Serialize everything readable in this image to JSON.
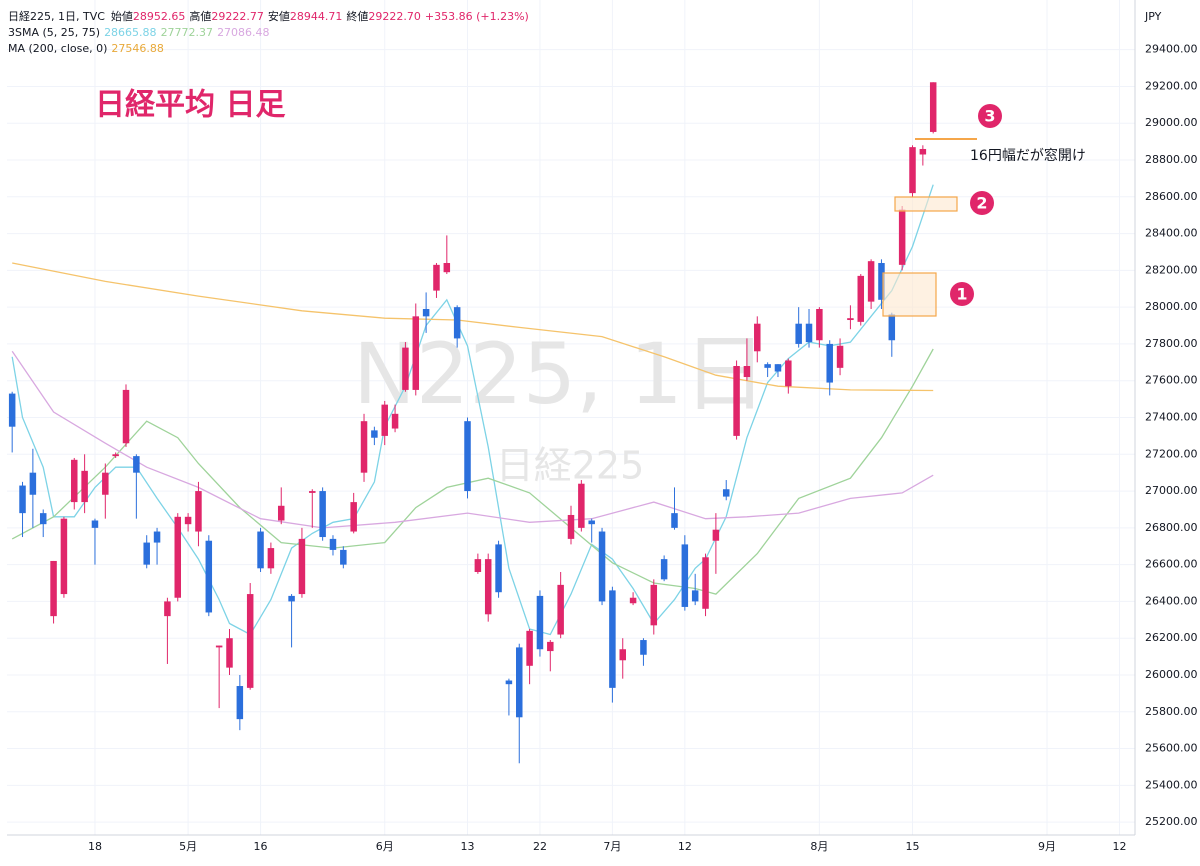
{
  "chart_data": {
    "type": "candlestick",
    "title": "日経平均 日足",
    "symbol": "日経225, 1日, TVC",
    "ohlc_labels": [
      "始値",
      "高値",
      "安値",
      "終値"
    ],
    "last_close_label": "29222.70",
    "change": "+353.86 (+1.23%)",
    "sma_label": "3SMA (5, 25, 75)",
    "ma_label": "MA (200, close, 0)",
    "watermark": "N225, 1日",
    "watermark_sub": "日経225",
    "axis_label": "JPY",
    "markers": [
      "1",
      "2",
      "3"
    ],
    "note": "16円幅だが窓開け",
    "up_color": "#e0266a",
    "down_color": "#2b6fdc",
    "grid": true,
    "xlim": [
      -0.5,
      108.5
    ],
    "xticks": [
      {
        "value": 8,
        "label": "18"
      },
      {
        "value": 17,
        "label": "5月"
      },
      {
        "value": 24,
        "label": "16"
      },
      {
        "value": 36,
        "label": "6月"
      },
      {
        "value": 44,
        "label": "13"
      },
      {
        "value": 51,
        "label": "22"
      },
      {
        "value": 58,
        "label": "7月"
      },
      {
        "value": 65,
        "label": "12"
      },
      {
        "value": 78,
        "label": "8月"
      },
      {
        "value": 87,
        "label": "15"
      },
      {
        "value": 100,
        "label": "9月"
      },
      {
        "value": 107,
        "label": "12"
      }
    ],
    "ylim": [
      25130,
      29670
    ],
    "yticks": [
      {
        "value": 25200,
        "label": "25200.00"
      },
      {
        "value": 25400,
        "label": "25400.00"
      },
      {
        "value": 25600,
        "label": "25600.00"
      },
      {
        "value": 25800,
        "label": "25800.00"
      },
      {
        "value": 26000,
        "label": "26000.00"
      },
      {
        "value": 26200,
        "label": "26200.00"
      },
      {
        "value": 26400,
        "label": "26400.00"
      },
      {
        "value": 26600,
        "label": "26600.00"
      },
      {
        "value": 26800,
        "label": "26800.00"
      },
      {
        "value": 27000,
        "label": "27000.00"
      },
      {
        "value": 27200,
        "label": "27200.00"
      },
      {
        "value": 27400,
        "label": "27400.00"
      },
      {
        "value": 27600,
        "label": "27600.00"
      },
      {
        "value": 27800,
        "label": "27800.00"
      },
      {
        "value": 28000,
        "label": "28000.00"
      },
      {
        "value": 28200,
        "label": "28200.00"
      },
      {
        "value": 28400,
        "label": "28400.00"
      },
      {
        "value": 28600,
        "label": "28600.00"
      },
      {
        "value": 28800,
        "label": "28800.00"
      },
      {
        "value": 29000,
        "label": "29000.00"
      },
      {
        "value": 29200,
        "label": "29200.00"
      },
      {
        "value": 29400,
        "label": "29400.00"
      }
    ],
    "open": [
      27530,
      27030,
      27100,
      26880,
      26320,
      26440,
      26940,
      26940,
      26840,
      26980,
      27190,
      27260,
      27190,
      26720,
      26780,
      26320,
      26420,
      26820,
      26780,
      26730,
      26150,
      26040,
      25940,
      25930,
      26780,
      26580,
      26840,
      26430,
      26440,
      26990,
      27000,
      26740,
      26680,
      26780,
      27100,
      27330,
      27300,
      27340,
      27550,
      27550,
      27990,
      28090,
      28190,
      28000,
      27380,
      26560,
      26330,
      26710,
      25970,
      26150,
      26050,
      26430,
      26130,
      26220,
      26740,
      26800,
      26840,
      26780,
      26460,
      26080,
      26390,
      26190,
      26270,
      26630,
      26880,
      26710,
      26460,
      26360,
      26730,
      27010,
      27300,
      27620,
      27760,
      27690,
      27690,
      27570,
      27910,
      27910,
      27820,
      27800,
      27670,
      27930,
      27920,
      28030,
      28240,
      27960,
      28230,
      28620,
      28830,
      28952.65
    ],
    "high": [
      27540,
      27050,
      27230,
      26900,
      26620,
      26860,
      27180,
      27200,
      26850,
      27150,
      27210,
      27580,
      27200,
      26760,
      26800,
      26420,
      26880,
      26880,
      27050,
      26760,
      26160,
      26250,
      26000,
      26500,
      26800,
      26720,
      27020,
      26440,
      26800,
      27010,
      27020,
      26760,
      26700,
      26990,
      27420,
      27350,
      27490,
      27470,
      27810,
      28020,
      28080,
      28240,
      28390,
      28010,
      27400,
      26660,
      26660,
      26730,
      25980,
      26170,
      26250,
      26460,
      26190,
      26560,
      26920,
      27060,
      26850,
      26800,
      26480,
      26200,
      26450,
      26200,
      26520,
      26650,
      27020,
      26760,
      26550,
      26660,
      26880,
      27060,
      27710,
      27830,
      27950,
      27700,
      27690,
      27720,
      28000,
      27990,
      28000,
      27820,
      27830,
      28010,
      28180,
      28260,
      28260,
      27970,
      28550,
      28880,
      28880,
      29222.77
    ],
    "low": [
      27210,
      26750,
      26800,
      26750,
      26280,
      26420,
      26900,
      26880,
      26600,
      26850,
      27180,
      27240,
      26850,
      26580,
      26600,
      26060,
      26400,
      26780,
      26700,
      26320,
      25820,
      26000,
      25700,
      25920,
      26560,
      26550,
      26820,
      26150,
      26420,
      26800,
      26730,
      26650,
      26580,
      26770,
      27050,
      27250,
      27250,
      27320,
      27540,
      27520,
      27860,
      28050,
      28180,
      27780,
      26960,
      26550,
      26290,
      26420,
      25780,
      25520,
      25950,
      26100,
      26020,
      26200,
      26710,
      26780,
      26720,
      26380,
      25850,
      25980,
      26380,
      26050,
      26220,
      26510,
      26790,
      26350,
      26380,
      26320,
      26550,
      26950,
      27280,
      27600,
      27700,
      27620,
      27620,
      27530,
      27780,
      27780,
      27780,
      27520,
      27630,
      27880,
      27900,
      27990,
      27990,
      27730,
      28200,
      28600,
      28770,
      28944.71
    ],
    "close": [
      27350,
      26880,
      26980,
      26820,
      26620,
      26850,
      27170,
      27110,
      26800,
      27100,
      27200,
      27550,
      27100,
      26600,
      26720,
      26400,
      26860,
      26860,
      27000,
      26340,
      26160,
      26200,
      25760,
      26440,
      26580,
      26690,
      26920,
      26400,
      26740,
      27000,
      26750,
      26680,
      26600,
      26940,
      27380,
      27290,
      27470,
      27420,
      27780,
      27950,
      27950,
      28230,
      28240,
      27830,
      27000,
      26630,
      26630,
      26450,
      25950,
      25770,
      26240,
      26140,
      26180,
      26490,
      26870,
      27040,
      26820,
      26400,
      25930,
      26140,
      26420,
      26110,
      26490,
      26520,
      26800,
      26370,
      26400,
      26640,
      26790,
      26970,
      27680,
      27680,
      27910,
      27670,
      27650,
      27710,
      27800,
      27810,
      27990,
      27590,
      27790,
      27940,
      28170,
      28250,
      28040,
      27820,
      28530,
      28870,
      28860,
      29222.7
    ],
    "lines": [
      {
        "color": "#7dd3e6",
        "x": [
          0,
          1,
          3,
          4,
          6,
          8,
          10,
          12,
          14,
          16,
          18,
          20,
          21,
          23,
          25,
          27,
          29,
          31,
          33,
          35,
          36,
          38,
          40,
          42,
          44,
          46,
          48,
          50,
          52,
          54,
          56,
          58,
          60,
          62,
          64,
          66,
          67,
          69,
          71,
          73,
          75,
          77,
          79,
          81,
          83,
          85,
          87,
          89
        ],
        "values": [
          27730,
          27400,
          27130,
          26860,
          26860,
          27020,
          27130,
          27130,
          26960,
          26800,
          26630,
          26410,
          26280,
          26220,
          26410,
          26690,
          26770,
          26830,
          26850,
          27050,
          27350,
          27570,
          27900,
          28040,
          27790,
          27240,
          26580,
          26250,
          26220,
          26440,
          26710,
          26630,
          26470,
          26280,
          26410,
          26580,
          26630,
          26860,
          27290,
          27590,
          27720,
          27810,
          27790,
          27810,
          27950,
          28090,
          28330,
          28665.88
        ]
      },
      {
        "color": "#9fd39a",
        "x": [
          0,
          4,
          9,
          13,
          16,
          18,
          22,
          26,
          31,
          36,
          39,
          42,
          46,
          50,
          54,
          58,
          62,
          66,
          68,
          72,
          76,
          81,
          84,
          87,
          89
        ],
        "values": [
          26740,
          26860,
          27130,
          27380,
          27290,
          27150,
          26910,
          26720,
          26690,
          26720,
          26910,
          27020,
          27070,
          26990,
          26800,
          26610,
          26500,
          26470,
          26440,
          26660,
          26960,
          27070,
          27290,
          27570,
          27772.37
        ]
      },
      {
        "color": "#d8a8e0",
        "x": [
          0,
          4,
          9,
          13,
          18,
          24,
          30,
          37,
          44,
          50,
          56,
          62,
          67,
          71,
          76,
          81,
          86,
          89
        ],
        "values": [
          27760,
          27430,
          27260,
          27130,
          27020,
          26850,
          26800,
          26830,
          26880,
          26830,
          26850,
          26940,
          26850,
          26860,
          26880,
          26960,
          26990,
          27086.48
        ]
      },
      {
        "color": "#f5c36b",
        "x": [
          0,
          9,
          18,
          28,
          36,
          43,
          49,
          57,
          63,
          68,
          74,
          81,
          89
        ],
        "values": [
          28240,
          28140,
          28060,
          27980,
          27940,
          27930,
          27890,
          27840,
          27730,
          27630,
          27570,
          27550,
          27546.88
        ]
      }
    ]
  }
}
